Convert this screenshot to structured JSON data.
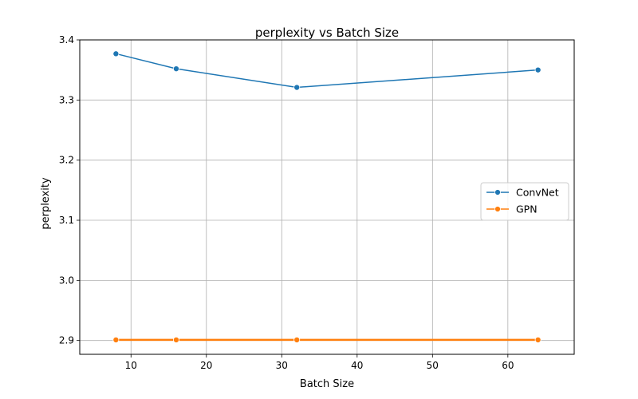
{
  "chart_data": {
    "type": "line",
    "title": "perplexity vs Batch Size",
    "xlabel": "Batch Size",
    "ylabel": "perplexity",
    "x": [
      8,
      16,
      32,
      64
    ],
    "xlim": [
      3.2,
      68.8
    ],
    "ylim": [
      2.877,
      3.4
    ],
    "xticks": [
      10,
      20,
      30,
      40,
      50,
      60
    ],
    "yticks": [
      2.9,
      3.0,
      3.1,
      3.2,
      3.3,
      3.4
    ],
    "ytick_labels": [
      "2.9",
      "3.0",
      "3.1",
      "3.2",
      "3.3",
      "3.4"
    ],
    "grid": true,
    "legend_position": "center-right",
    "series": [
      {
        "name": "ConvNet",
        "color": "#1f77b4",
        "values": [
          3.377,
          3.352,
          3.321,
          3.35
        ]
      },
      {
        "name": "GPN",
        "color": "#ff7f0e",
        "values": [
          2.901,
          2.901,
          2.901,
          2.901
        ]
      }
    ]
  }
}
